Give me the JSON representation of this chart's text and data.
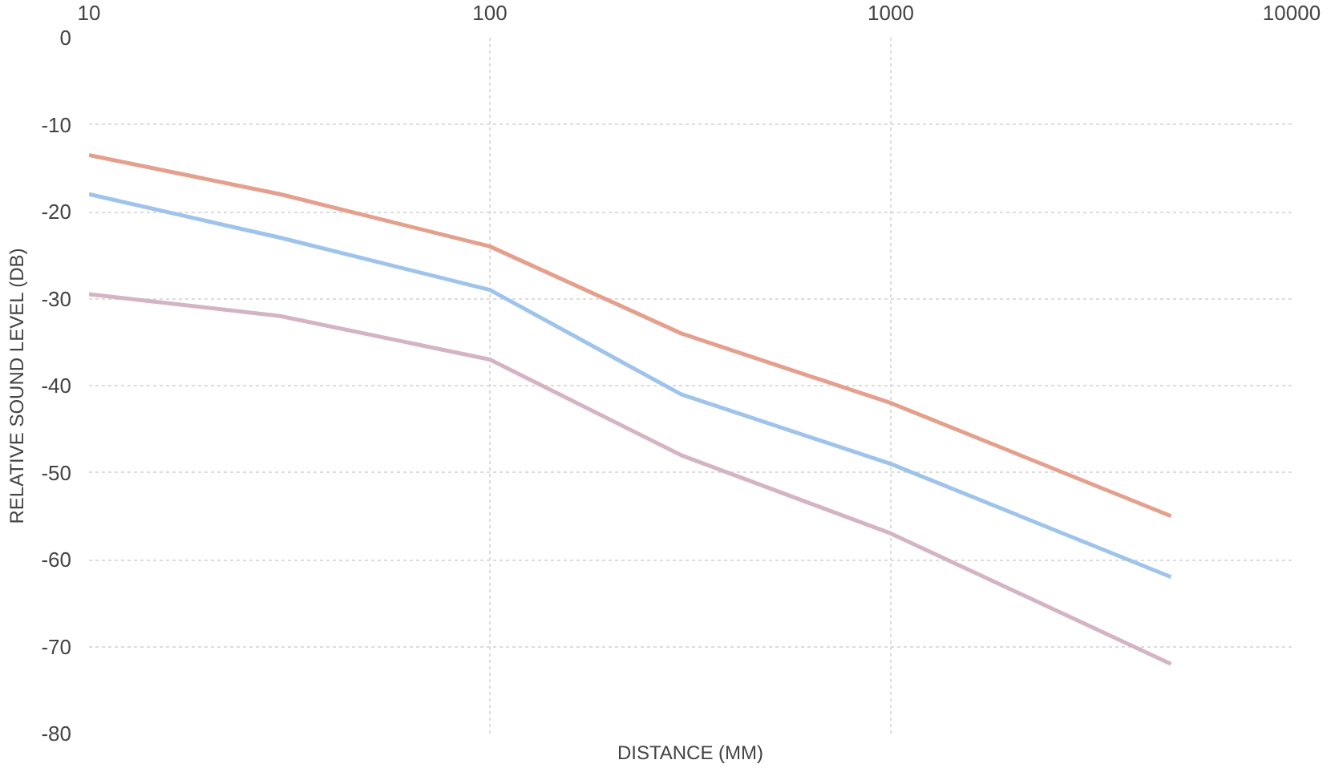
{
  "chart_data": {
    "type": "line",
    "xlabel": "DISTANCE (MM)",
    "ylabel": "RELATIVE SOUND LEVEL (DB)",
    "log": "x",
    "xlim": [
      10,
      10000
    ],
    "xticks": [
      10,
      100,
      1000,
      10000
    ],
    "ylim": [
      -80,
      0
    ],
    "yticks": [
      -80,
      -70,
      -60,
      -50,
      -40,
      -30,
      -20,
      -10,
      0
    ],
    "grid": true,
    "line_style": "solid",
    "series": [
      {
        "color": "#e4a08c",
        "x": [
          10,
          30,
          100,
          300,
          1000,
          5000
        ],
        "values": [
          -13.5,
          -18,
          -24,
          -34,
          -42,
          -55
        ]
      },
      {
        "color": "#9ec4ec",
        "x": [
          10,
          30,
          100,
          300,
          1000,
          5000
        ],
        "values": [
          -18,
          -23,
          -29,
          -41,
          -49,
          -62
        ]
      },
      {
        "color": "#d4b4c4",
        "x": [
          10,
          30,
          100,
          300,
          1000,
          5000
        ],
        "values": [
          -29.5,
          -32,
          -37,
          -48,
          -57,
          -72
        ]
      }
    ]
  }
}
